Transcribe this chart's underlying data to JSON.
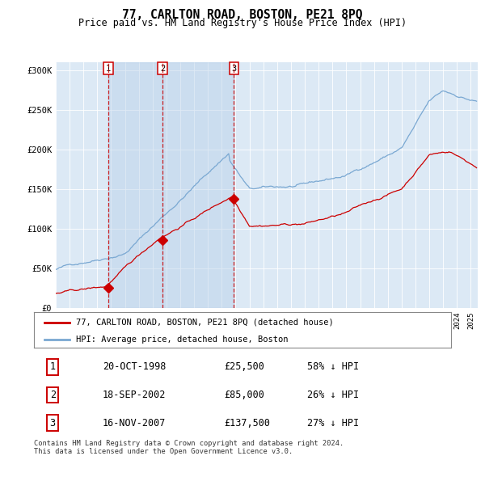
{
  "title": "77, CARLTON ROAD, BOSTON, PE21 8PQ",
  "subtitle": "Price paid vs. HM Land Registry's House Price Index (HPI)",
  "title_fontsize": 10.5,
  "subtitle_fontsize": 8.5,
  "background_color": "#dce9f5",
  "plot_bg_color": "#dce9f5",
  "red_line_color": "#cc0000",
  "blue_line_color": "#7aa8d2",
  "purchases": [
    {
      "date_num": 1998.8,
      "price": 25500,
      "label": "1"
    },
    {
      "date_num": 2002.72,
      "price": 85000,
      "label": "2"
    },
    {
      "date_num": 2007.88,
      "price": 137500,
      "label": "3"
    }
  ],
  "purchase_labels": [
    {
      "label": "1",
      "date": "20-OCT-1998",
      "price": "£25,500",
      "hpi": "58% ↓ HPI"
    },
    {
      "label": "2",
      "date": "18-SEP-2002",
      "price": "£85,000",
      "hpi": "26% ↓ HPI"
    },
    {
      "label": "3",
      "date": "16-NOV-2007",
      "price": "£137,500",
      "hpi": "27% ↓ HPI"
    }
  ],
  "legend_red": "77, CARLTON ROAD, BOSTON, PE21 8PQ (detached house)",
  "legend_blue": "HPI: Average price, detached house, Boston",
  "footer": "Contains HM Land Registry data © Crown copyright and database right 2024.\nThis data is licensed under the Open Government Licence v3.0.",
  "ylim": [
    0,
    310000
  ],
  "yticks": [
    0,
    50000,
    100000,
    150000,
    200000,
    250000,
    300000
  ],
  "ytick_labels": [
    "£0",
    "£50K",
    "£100K",
    "£150K",
    "£200K",
    "£250K",
    "£300K"
  ],
  "xmin": 1995.0,
  "xmax": 2025.5
}
